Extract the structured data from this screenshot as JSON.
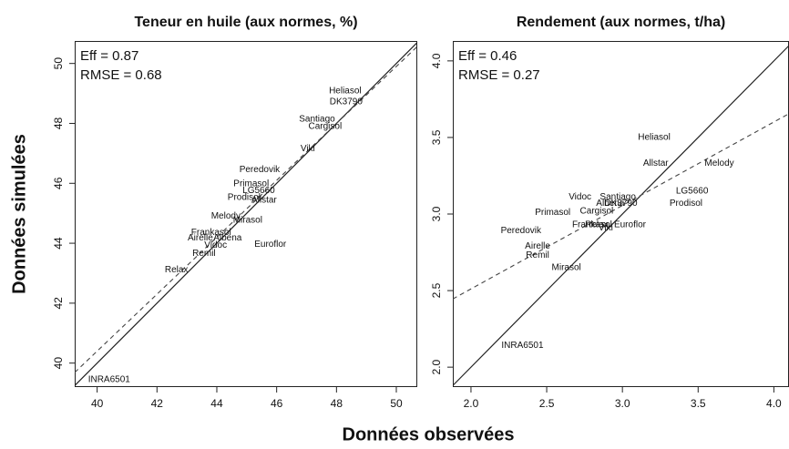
{
  "xlabel": "Données observées",
  "ylabel": "Données simulées",
  "chart_data": [
    {
      "type": "scatter",
      "title": "Teneur en huile (aux normes, %)",
      "annotations": [
        "Eff = 0.87",
        "RMSE = 0.68"
      ],
      "fit": {
        "intercept": 2.4,
        "slope": 0.95
      },
      "labels": [
        "Heliasol",
        "DK3790",
        "Santiago",
        "Cargisol",
        "Viki",
        "Peredovik",
        "Primasol",
        "LG5660",
        "Prodisol",
        "Allstar",
        "Melody",
        "Mirasol",
        "Frankasol",
        "Airelle",
        "Albena",
        "Vidoc",
        "Euroflor",
        "Remil",
        "Relax",
        "INRA6501"
      ],
      "x": [
        48.29,
        48.32,
        47.35,
        47.62,
        47.04,
        45.43,
        45.15,
        45.4,
        44.91,
        45.58,
        44.3,
        45.03,
        43.81,
        43.45,
        44.36,
        43.96,
        45.79,
        43.57,
        42.65,
        40.4
      ],
      "y": [
        49.09,
        48.72,
        48.14,
        47.9,
        47.16,
        46.46,
        45.98,
        45.76,
        45.52,
        45.43,
        44.91,
        44.76,
        44.36,
        44.18,
        44.18,
        43.93,
        43.96,
        43.66,
        43.11,
        39.45
      ],
      "xlim": [
        39.25,
        50.7
      ],
      "ylim": [
        39.2,
        50.75
      ],
      "xticks": [
        40,
        42,
        44,
        46,
        48,
        50
      ],
      "yticks": [
        40,
        42,
        44,
        46,
        48,
        50
      ]
    },
    {
      "type": "scatter",
      "title": "Rendement (aux normes, t/ha)",
      "annotations": [
        "Eff = 0.46",
        "RMSE = 0.27"
      ],
      "fit": {
        "intercept": 1.421,
        "slope": 0.545
      },
      "labels": [
        "Heliasol",
        "Allstar",
        "Melody",
        "LG5660",
        "Prodisol",
        "Vidoc",
        "Santiago",
        "Albena",
        "DK3790",
        "Cargisol",
        "Primasol",
        "Frankasol",
        "Relax",
        "Viki",
        "Euroflor",
        "Peredovik",
        "Airelle",
        "Remil",
        "Mirasol",
        "INRA6501"
      ],
      "x": [
        3.21,
        3.22,
        3.64,
        3.46,
        3.42,
        2.72,
        2.97,
        2.92,
        2.99,
        2.83,
        2.54,
        2.8,
        2.83,
        2.89,
        3.05,
        2.33,
        2.44,
        2.44,
        2.63,
        2.34
      ],
      "y": [
        3.5,
        3.33,
        3.33,
        3.15,
        3.07,
        3.11,
        3.11,
        3.07,
        3.07,
        3.02,
        3.01,
        2.93,
        2.93,
        2.91,
        2.93,
        2.89,
        2.79,
        2.73,
        2.65,
        2.14
      ],
      "xlim": [
        1.88,
        4.1
      ],
      "ylim": [
        1.87,
        4.13
      ],
      "xticks": [
        {
          "value": 2,
          "label": "2.0"
        },
        {
          "value": 2.5,
          "label": "2.5"
        },
        {
          "value": 3,
          "label": "3.0"
        },
        {
          "value": 3.5,
          "label": "3.5"
        },
        {
          "value": 4,
          "label": "4.0"
        }
      ],
      "yticks": [
        {
          "value": 2,
          "label": "2.0"
        },
        {
          "value": 2.5,
          "label": "2.5"
        },
        {
          "value": 3,
          "label": "3.0"
        },
        {
          "value": 3.5,
          "label": "3.5"
        },
        {
          "value": 4,
          "label": "4.0"
        }
      ]
    }
  ]
}
